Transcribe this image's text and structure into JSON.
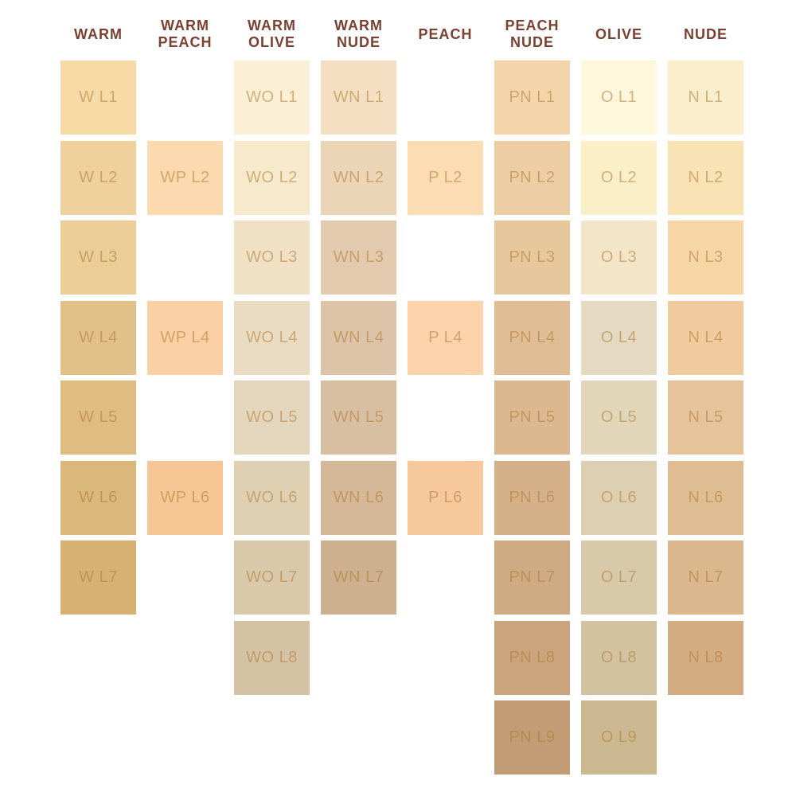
{
  "colors": {
    "background": "#FFFFFF",
    "header_text": "#7A4031",
    "swatch_label_text": "#B07C34"
  },
  "chart_data": {
    "type": "table",
    "title": "",
    "row_count": 9,
    "columns": [
      {
        "header": "WARM",
        "swatches": [
          {
            "label": "W L1",
            "row": 1,
            "color": "#F6DBA7"
          },
          {
            "label": "W L2",
            "row": 2,
            "color": "#EFD19D"
          },
          {
            "label": "W L3",
            "row": 3,
            "color": "#EBCD97"
          },
          {
            "label": "W L4",
            "row": 4,
            "color": "#E1C189"
          },
          {
            "label": "W L5",
            "row": 5,
            "color": "#DEBC82"
          },
          {
            "label": "W L6",
            "row": 6,
            "color": "#DAB77B"
          },
          {
            "label": "W L7",
            "row": 7,
            "color": "#D6B171"
          }
        ]
      },
      {
        "header": "WARM\nPEACH",
        "swatches": [
          {
            "label": "WP L2",
            "row": 2,
            "color": "#FCD9AE"
          },
          {
            "label": "WP L4",
            "row": 4,
            "color": "#FBD0A5"
          },
          {
            "label": "WP L6",
            "row": 6,
            "color": "#F6C795"
          }
        ]
      },
      {
        "header": "WARM\nOLIVE",
        "swatches": [
          {
            "label": "WO L1",
            "row": 1,
            "color": "#FBF0D5"
          },
          {
            "label": "WO L2",
            "row": 2,
            "color": "#F7E9CB"
          },
          {
            "label": "WO L3",
            "row": 3,
            "color": "#F0E1C5"
          },
          {
            "label": "WO L4",
            "row": 4,
            "color": "#E9DCC2"
          },
          {
            "label": "WO L5",
            "row": 5,
            "color": "#E4D6BC"
          },
          {
            "label": "WO L6",
            "row": 6,
            "color": "#DFD0B4"
          },
          {
            "label": "WO L7",
            "row": 7,
            "color": "#D9C8AA"
          },
          {
            "label": "WO L8",
            "row": 8,
            "color": "#D4C2A5"
          }
        ]
      },
      {
        "header": "WARM\nNUDE",
        "swatches": [
          {
            "label": "WN L1",
            "row": 1,
            "color": "#F4DFC2"
          },
          {
            "label": "WN L2",
            "row": 2,
            "color": "#ECD4B7"
          },
          {
            "label": "WN L3",
            "row": 3,
            "color": "#E3CAAE"
          },
          {
            "label": "WN L4",
            "row": 4,
            "color": "#DDC3A8"
          },
          {
            "label": "WN L5",
            "row": 5,
            "color": "#D9BFA2"
          },
          {
            "label": "WN L6",
            "row": 6,
            "color": "#D4B898"
          },
          {
            "label": "WN L7",
            "row": 7,
            "color": "#CDB08D"
          }
        ]
      },
      {
        "header": "PEACH",
        "swatches": [
          {
            "label": "P L2",
            "row": 2,
            "color": "#FCDDB3"
          },
          {
            "label": "P L4",
            "row": 4,
            "color": "#FDD3AC"
          },
          {
            "label": "P L6",
            "row": 6,
            "color": "#F6C89C"
          }
        ]
      },
      {
        "header": "PEACH\nNUDE",
        "swatches": [
          {
            "label": "PN L1",
            "row": 1,
            "color": "#F4D5AB"
          },
          {
            "label": "PN L2",
            "row": 2,
            "color": "#EDCDA4"
          },
          {
            "label": "PN L3",
            "row": 3,
            "color": "#E7C79C"
          },
          {
            "label": "PN L4",
            "row": 4,
            "color": "#DFBD95"
          },
          {
            "label": "PN L5",
            "row": 5,
            "color": "#DBB88F"
          },
          {
            "label": "PN L6",
            "row": 6,
            "color": "#D5B18A"
          },
          {
            "label": "PN L7",
            "row": 7,
            "color": "#CFAB84"
          },
          {
            "label": "PN L8",
            "row": 8,
            "color": "#C9A47D"
          },
          {
            "label": "PN L9",
            "row": 9,
            "color": "#C19C74"
          }
        ]
      },
      {
        "header": "OLIVE",
        "swatches": [
          {
            "label": "O L1",
            "row": 1,
            "color": "#FDF7DB"
          },
          {
            "label": "O L2",
            "row": 2,
            "color": "#FBEFC8"
          },
          {
            "label": "O L3",
            "row": 3,
            "color": "#F3E5C7"
          },
          {
            "label": "O L4",
            "row": 4,
            "color": "#E4DAC1"
          },
          {
            "label": "O L5",
            "row": 5,
            "color": "#E1D5BA"
          },
          {
            "label": "O L6",
            "row": 6,
            "color": "#DDCFB2"
          },
          {
            "label": "O L7",
            "row": 7,
            "color": "#D8C9AB"
          },
          {
            "label": "O L8",
            "row": 8,
            "color": "#D2C29F"
          },
          {
            "label": "O L9",
            "row": 9,
            "color": "#CBB890"
          }
        ]
      },
      {
        "header": "NUDE",
        "swatches": [
          {
            "label": "N L1",
            "row": 1,
            "color": "#FBEECD"
          },
          {
            "label": "N L2",
            "row": 2,
            "color": "#F9E2B4"
          },
          {
            "label": "N L3",
            "row": 3,
            "color": "#F7D6A6"
          },
          {
            "label": "N L4",
            "row": 4,
            "color": "#F0CB9D"
          },
          {
            "label": "N L5",
            "row": 5,
            "color": "#E5C49B"
          },
          {
            "label": "N L6",
            "row": 6,
            "color": "#DFBD93"
          },
          {
            "label": "N L7",
            "row": 7,
            "color": "#DAB78C"
          },
          {
            "label": "N L8",
            "row": 8,
            "color": "#D3AC81"
          }
        ]
      }
    ]
  }
}
